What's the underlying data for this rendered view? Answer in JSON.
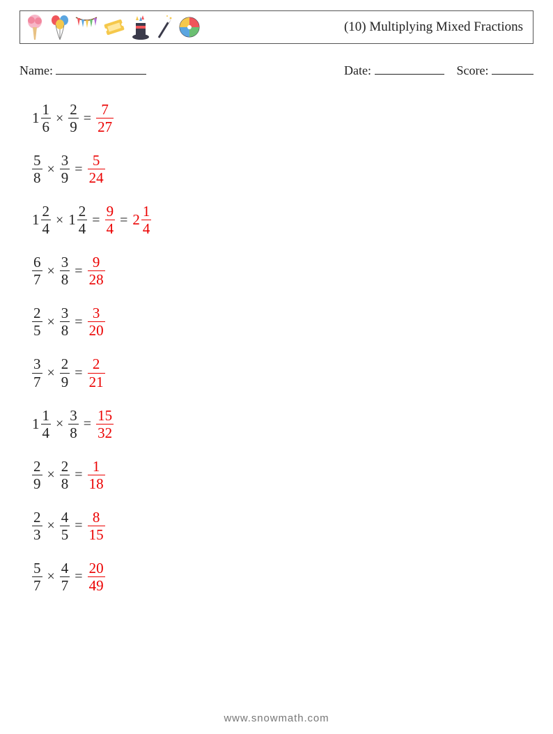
{
  "title": "(10) Multiplying Mixed Fractions",
  "labels": {
    "name": "Name:",
    "date": "Date:",
    "score": "Score:"
  },
  "lineWidths": {
    "name": 130,
    "date": 100,
    "score": 60
  },
  "operators": {
    "times": "×",
    "equals": "="
  },
  "colors": {
    "text": "#222222",
    "answer": "#eb0000",
    "border": "#555555",
    "footer": "#777777",
    "background": "#ffffff"
  },
  "typography": {
    "titleFontSize": 19,
    "infoFontSize": 18,
    "mathFontSize": 21,
    "footerFontSize": 15,
    "fontFamily": "Georgia, serif"
  },
  "layout": {
    "pageWidth": 794,
    "pageHeight": 1053,
    "problemSpacing": 26
  },
  "icons": [
    {
      "name": "cotton-candy-icon"
    },
    {
      "name": "balloons-icon"
    },
    {
      "name": "bunting-icon"
    },
    {
      "name": "ticket-icon"
    },
    {
      "name": "magic-hat-icon"
    },
    {
      "name": "wand-icon"
    },
    {
      "name": "beach-ball-icon"
    }
  ],
  "problems": [
    {
      "left": {
        "whole": "1",
        "num": "1",
        "den": "6"
      },
      "right": {
        "whole": null,
        "num": "2",
        "den": "9"
      },
      "answer": [
        {
          "whole": null,
          "num": "7",
          "den": "27"
        }
      ]
    },
    {
      "left": {
        "whole": null,
        "num": "5",
        "den": "8"
      },
      "right": {
        "whole": null,
        "num": "3",
        "den": "9"
      },
      "answer": [
        {
          "whole": null,
          "num": "5",
          "den": "24"
        }
      ]
    },
    {
      "left": {
        "whole": "1",
        "num": "2",
        "den": "4"
      },
      "right": {
        "whole": "1",
        "num": "2",
        "den": "4"
      },
      "answer": [
        {
          "whole": null,
          "num": "9",
          "den": "4"
        },
        {
          "whole": "2",
          "num": "1",
          "den": "4"
        }
      ]
    },
    {
      "left": {
        "whole": null,
        "num": "6",
        "den": "7"
      },
      "right": {
        "whole": null,
        "num": "3",
        "den": "8"
      },
      "answer": [
        {
          "whole": null,
          "num": "9",
          "den": "28"
        }
      ]
    },
    {
      "left": {
        "whole": null,
        "num": "2",
        "den": "5"
      },
      "right": {
        "whole": null,
        "num": "3",
        "den": "8"
      },
      "answer": [
        {
          "whole": null,
          "num": "3",
          "den": "20"
        }
      ]
    },
    {
      "left": {
        "whole": null,
        "num": "3",
        "den": "7"
      },
      "right": {
        "whole": null,
        "num": "2",
        "den": "9"
      },
      "answer": [
        {
          "whole": null,
          "num": "2",
          "den": "21"
        }
      ]
    },
    {
      "left": {
        "whole": "1",
        "num": "1",
        "den": "4"
      },
      "right": {
        "whole": null,
        "num": "3",
        "den": "8"
      },
      "answer": [
        {
          "whole": null,
          "num": "15",
          "den": "32"
        }
      ]
    },
    {
      "left": {
        "whole": null,
        "num": "2",
        "den": "9"
      },
      "right": {
        "whole": null,
        "num": "2",
        "den": "8"
      },
      "answer": [
        {
          "whole": null,
          "num": "1",
          "den": "18"
        }
      ]
    },
    {
      "left": {
        "whole": null,
        "num": "2",
        "den": "3"
      },
      "right": {
        "whole": null,
        "num": "4",
        "den": "5"
      },
      "answer": [
        {
          "whole": null,
          "num": "8",
          "den": "15"
        }
      ]
    },
    {
      "left": {
        "whole": null,
        "num": "5",
        "den": "7"
      },
      "right": {
        "whole": null,
        "num": "4",
        "den": "7"
      },
      "answer": [
        {
          "whole": null,
          "num": "20",
          "den": "49"
        }
      ]
    }
  ],
  "footer": "www.snowmath.com"
}
